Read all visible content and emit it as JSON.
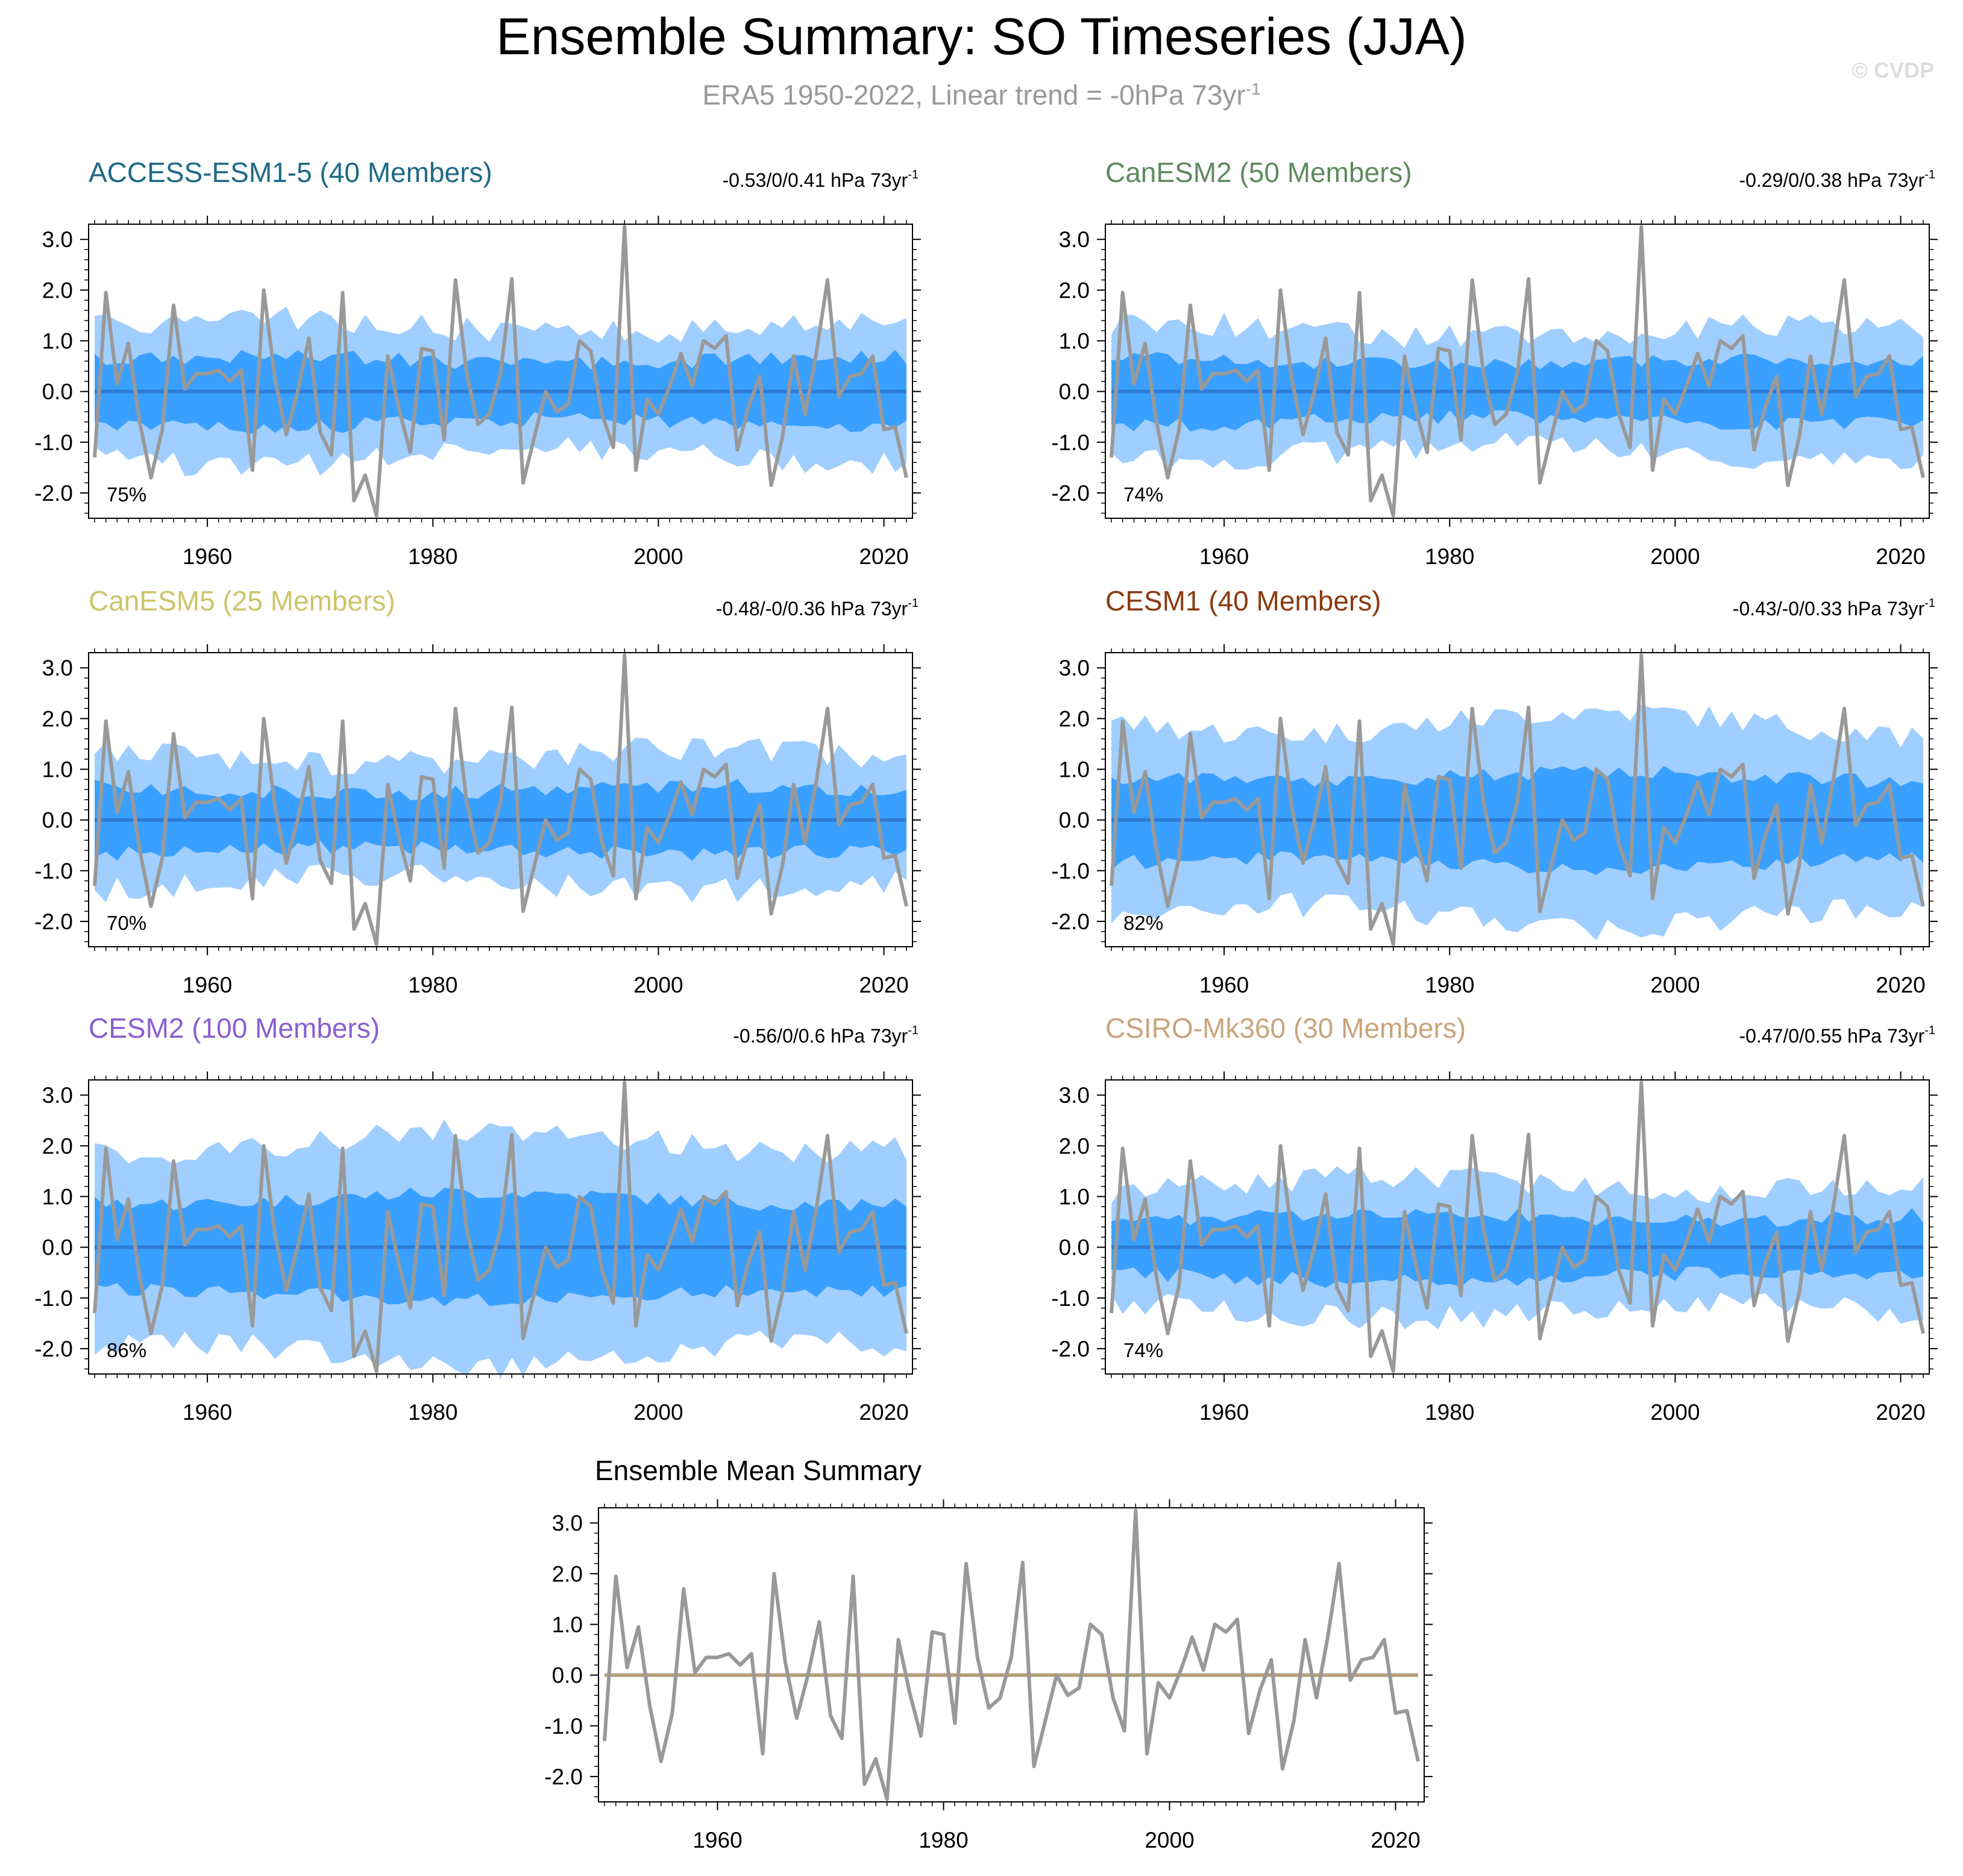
{
  "title": "Ensemble Summary: SO Timeseries (JJA)",
  "subtitle": "ERA5 1950-2022, Linear trend = -0hPa 73yr",
  "subtitle_sup": "-1",
  "copyright": "© CVDP",
  "colors": {
    "observed": "#999999",
    "band_outer": "#a0cfff",
    "band_inner": "#3aa0ff",
    "ensemble_mean": "#2d7cd6",
    "summary_mean": "#b39e7c"
  },
  "chart_data": [
    {
      "type": "line",
      "name": "ACCESS-ESM1-5 (40 Members)",
      "label_color": "#1e6a85",
      "trend_text": "-0.53/0/0.41 hPa 73yr",
      "trend_sup": "-1",
      "percent": "75%",
      "outer_spread": 1.3,
      "inner_spread": 0.62,
      "xlim": [
        1950,
        2022
      ],
      "ylim": [
        -2.5,
        3.3
      ],
      "x_ticks": [
        "1960",
        "1980",
        "2000",
        "2020"
      ],
      "y_ticks": [
        "3.0",
        "2.0",
        "1.0",
        "0.0",
        "-1.0",
        "-2.0"
      ]
    },
    {
      "type": "line",
      "name": "CanESM2 (50 Members)",
      "label_color": "#5f8a5f",
      "trend_text": "-0.29/0/0.38 hPa 73yr",
      "trend_sup": "-1",
      "percent": "74%",
      "outer_spread": 1.2,
      "inner_spread": 0.58,
      "xlim": [
        1950,
        2022
      ],
      "ylim": [
        -2.5,
        3.3
      ],
      "x_ticks": [
        "1960",
        "1980",
        "2000",
        "2020"
      ],
      "y_ticks": [
        "3.0",
        "2.0",
        "1.0",
        "0.0",
        "-1.0",
        "-2.0"
      ]
    },
    {
      "type": "line",
      "name": "CanESM5 (25 Members)",
      "label_color": "#cdc46a",
      "trend_text": "-0.48/-0/0.36 hPa 73yr",
      "trend_sup": "-1",
      "percent": "70%",
      "outer_spread": 1.25,
      "inner_spread": 0.6,
      "xlim": [
        1950,
        2022
      ],
      "ylim": [
        -2.5,
        3.3
      ],
      "x_ticks": [
        "1960",
        "1980",
        "2000",
        "2020"
      ],
      "y_ticks": [
        "3.0",
        "2.0",
        "1.0",
        "0.0",
        "-1.0",
        "-2.0"
      ]
    },
    {
      "type": "line",
      "name": "CESM1 (40 Members)",
      "label_color": "#8a3a10",
      "trend_text": "-0.43/-0/0.33 hPa 73yr",
      "trend_sup": "-1",
      "percent": "82%",
      "outer_spread": 1.9,
      "inner_spread": 0.85,
      "xlim": [
        1950,
        2022
      ],
      "ylim": [
        -2.5,
        3.3
      ],
      "x_ticks": [
        "1960",
        "1980",
        "2000",
        "2020"
      ],
      "y_ticks": [
        "3.0",
        "2.0",
        "1.0",
        "0.0",
        "-1.0",
        "-2.0"
      ]
    },
    {
      "type": "line",
      "name": "CESM2 (100 Members)",
      "label_color": "#8a5fd0",
      "trend_text": "-0.56/0/0.6 hPa 73yr",
      "trend_sup": "-1",
      "percent": "86%",
      "outer_spread": 2.1,
      "inner_spread": 0.95,
      "xlim": [
        1950,
        2022
      ],
      "ylim": [
        -2.5,
        3.3
      ],
      "x_ticks": [
        "1960",
        "1980",
        "2000",
        "2020"
      ],
      "y_ticks": [
        "3.0",
        "2.0",
        "1.0",
        "0.0",
        "-1.0",
        "-2.0"
      ]
    },
    {
      "type": "line",
      "name": "CSIRO-Mk360 (30 Members)",
      "label_color": "#c9a47c",
      "trend_text": "-0.47/0/0.55 hPa 73yr",
      "trend_sup": "-1",
      "percent": "74%",
      "outer_spread": 1.25,
      "inner_spread": 0.6,
      "xlim": [
        1950,
        2022
      ],
      "ylim": [
        -2.5,
        3.3
      ],
      "x_ticks": [
        "1960",
        "1980",
        "2000",
        "2020"
      ],
      "y_ticks": [
        "3.0",
        "2.0",
        "1.0",
        "0.0",
        "-1.0",
        "-2.0"
      ]
    }
  ],
  "summary_chart": {
    "type": "line",
    "title": "Ensemble Mean Summary",
    "xlim": [
      1950,
      2022
    ],
    "ylim": [
      -2.5,
      3.3
    ],
    "x_ticks": [
      "1960",
      "1980",
      "2000",
      "2020"
    ],
    "y_ticks": [
      "3.0",
      "2.0",
      "1.0",
      "0.0",
      "-1.0",
      "-2.0"
    ]
  },
  "observed_series": {
    "name": "ERA5",
    "x_start": 1950,
    "values": [
      -1.3,
      1.95,
      0.15,
      0.95,
      -0.6,
      -1.7,
      -0.75,
      1.7,
      0.05,
      0.35,
      0.35,
      0.42,
      0.2,
      0.42,
      -1.55,
      2.0,
      0.25,
      -0.85,
      0.0,
      1.05,
      -0.8,
      -1.25,
      1.95,
      -2.15,
      -1.65,
      -2.45,
      0.7,
      -0.35,
      -1.2,
      0.85,
      0.8,
      -0.95,
      2.2,
      0.35,
      -0.65,
      -0.45,
      0.35,
      2.22,
      -1.8,
      -0.9,
      0.0,
      -0.4,
      -0.25,
      1.0,
      0.8,
      -0.45,
      -1.1,
      3.25,
      -1.55,
      -0.15,
      -0.45,
      0.1,
      0.75,
      0.1,
      1.0,
      0.85,
      1.1,
      -1.15,
      -0.3,
      0.3,
      -1.85,
      -0.9,
      0.7,
      -0.45,
      0.75,
      2.2,
      -0.1,
      0.3,
      0.35,
      0.7,
      -0.75,
      -0.7,
      -1.7
    ]
  }
}
